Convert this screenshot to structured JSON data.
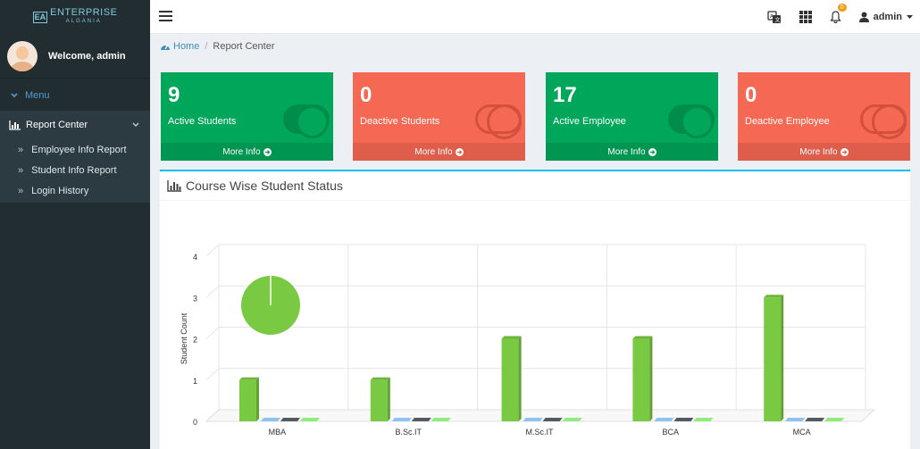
{
  "brand": {
    "mark": "EA",
    "name": "ENTERPRISE",
    "tagline": "ALGANIA"
  },
  "user": {
    "welcome": "Welcome, admin",
    "name": "admin"
  },
  "sidebar": {
    "menu_header": "Menu",
    "group": {
      "label": "Report Center",
      "icon": "bar-chart-icon"
    },
    "items": [
      {
        "label": "Employee Info Report"
      },
      {
        "label": "Student Info Report"
      },
      {
        "label": "Login History"
      }
    ]
  },
  "topbar": {
    "notification_count": "0"
  },
  "breadcrumb": {
    "home": "Home",
    "current": "Report Center"
  },
  "stats": [
    {
      "value": "9",
      "label": "Active Students",
      "more": "More Info",
      "color": "#00a65a",
      "toggle_on": true
    },
    {
      "value": "0",
      "label": "Deactive Students",
      "more": "More Info",
      "color": "#f56954",
      "toggle_on": false
    },
    {
      "value": "17",
      "label": "Active Employee",
      "more": "More Info",
      "color": "#00a65a",
      "toggle_on": true
    },
    {
      "value": "0",
      "label": "Deactive Employee",
      "more": "More Info",
      "color": "#f56954",
      "toggle_on": false
    }
  ],
  "panel": {
    "title": "Course Wise Student Status"
  },
  "chart_data": {
    "type": "bar",
    "title": "",
    "ylabel": "Student Count",
    "xlabel": "",
    "ylim": [
      0,
      4
    ],
    "yticks": [
      "0",
      "1",
      "2",
      "3",
      "4"
    ],
    "categories": [
      "MBA",
      "B.Sc.IT",
      "M.Sc.IT",
      "BCA",
      "MCA"
    ],
    "series": [
      {
        "values": [
          1,
          1,
          2,
          2,
          3
        ],
        "color": "#7ac943"
      },
      {
        "values": [
          0,
          0,
          0,
          0,
          0
        ],
        "color": "#8ec3f0"
      },
      {
        "values": [
          0,
          0,
          0,
          0,
          0
        ],
        "color": "#555a60"
      },
      {
        "values": [
          0,
          0,
          0,
          0,
          0
        ],
        "color": "#90ed7d"
      }
    ],
    "grid": true,
    "inset_pie": {
      "values": [
        1
      ],
      "color": "#7ac943"
    }
  }
}
